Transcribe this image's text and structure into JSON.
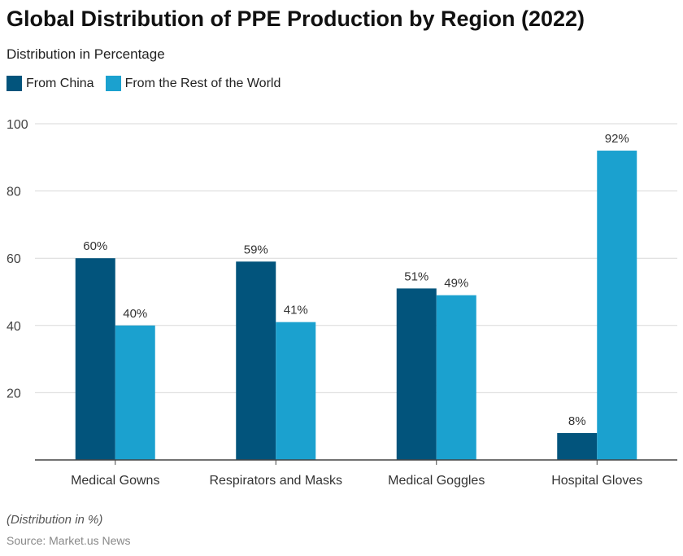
{
  "chart_data": {
    "type": "bar",
    "title": "Global Distribution of PPE Production by Region (2022)",
    "subtitle": "Distribution in Percentage",
    "categories": [
      "Medical Gowns",
      "Respirators and Masks",
      "Medical Goggles",
      "Hospital Gloves"
    ],
    "series": [
      {
        "name": "From China",
        "values": [
          60,
          59,
          51,
          8
        ],
        "color": "#02547c"
      },
      {
        "name": "From the Rest of the World",
        "values": [
          40,
          41,
          49,
          92
        ],
        "color": "#1ba1cf"
      }
    ],
    "value_suffix": "%",
    "ylim": [
      0,
      100
    ],
    "yticks": [
      20,
      40,
      60,
      80,
      100
    ],
    "grid": true,
    "legend": "top-left",
    "note": "(Distribution in %)",
    "source": "Source: Market.us News"
  }
}
